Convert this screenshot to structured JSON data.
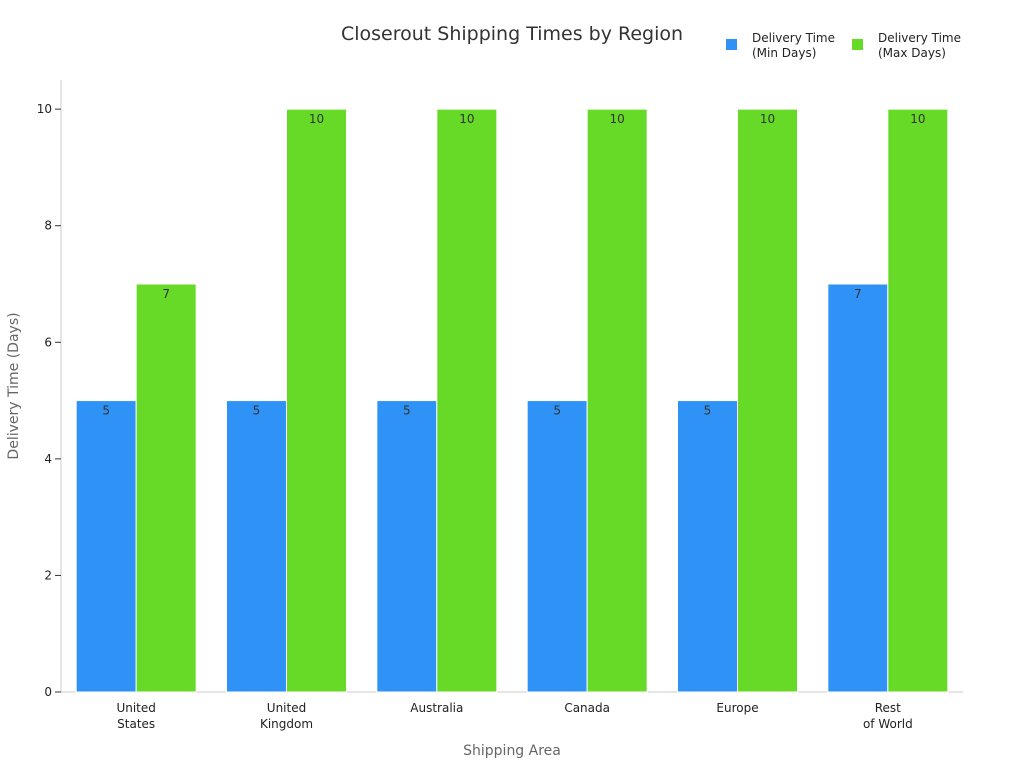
{
  "chart_data": {
    "type": "bar",
    "title": "Closerout Shipping Times by Region",
    "xlabel": "Shipping Area",
    "ylabel": "Delivery Time (Days)",
    "categories": [
      [
        "United",
        "States"
      ],
      [
        "United",
        "Kingdom"
      ],
      [
        "Australia"
      ],
      [
        "Canada"
      ],
      [
        "Europe"
      ],
      [
        "Rest",
        "of World"
      ]
    ],
    "series": [
      {
        "name": [
          "Delivery Time",
          "(Min Days)"
        ],
        "values": [
          5,
          5,
          5,
          5,
          5,
          7
        ],
        "color": "#2f92f7"
      },
      {
        "name": [
          "Delivery Time",
          "(Max Days)"
        ],
        "values": [
          7,
          10,
          10,
          10,
          10,
          10
        ],
        "color": "#66da26"
      }
    ],
    "ylim": [
      0,
      10.5
    ],
    "yticks": [
      0,
      2,
      4,
      6,
      8,
      10
    ],
    "grid": false,
    "legend_position": "top-right",
    "data_labels": true
  }
}
